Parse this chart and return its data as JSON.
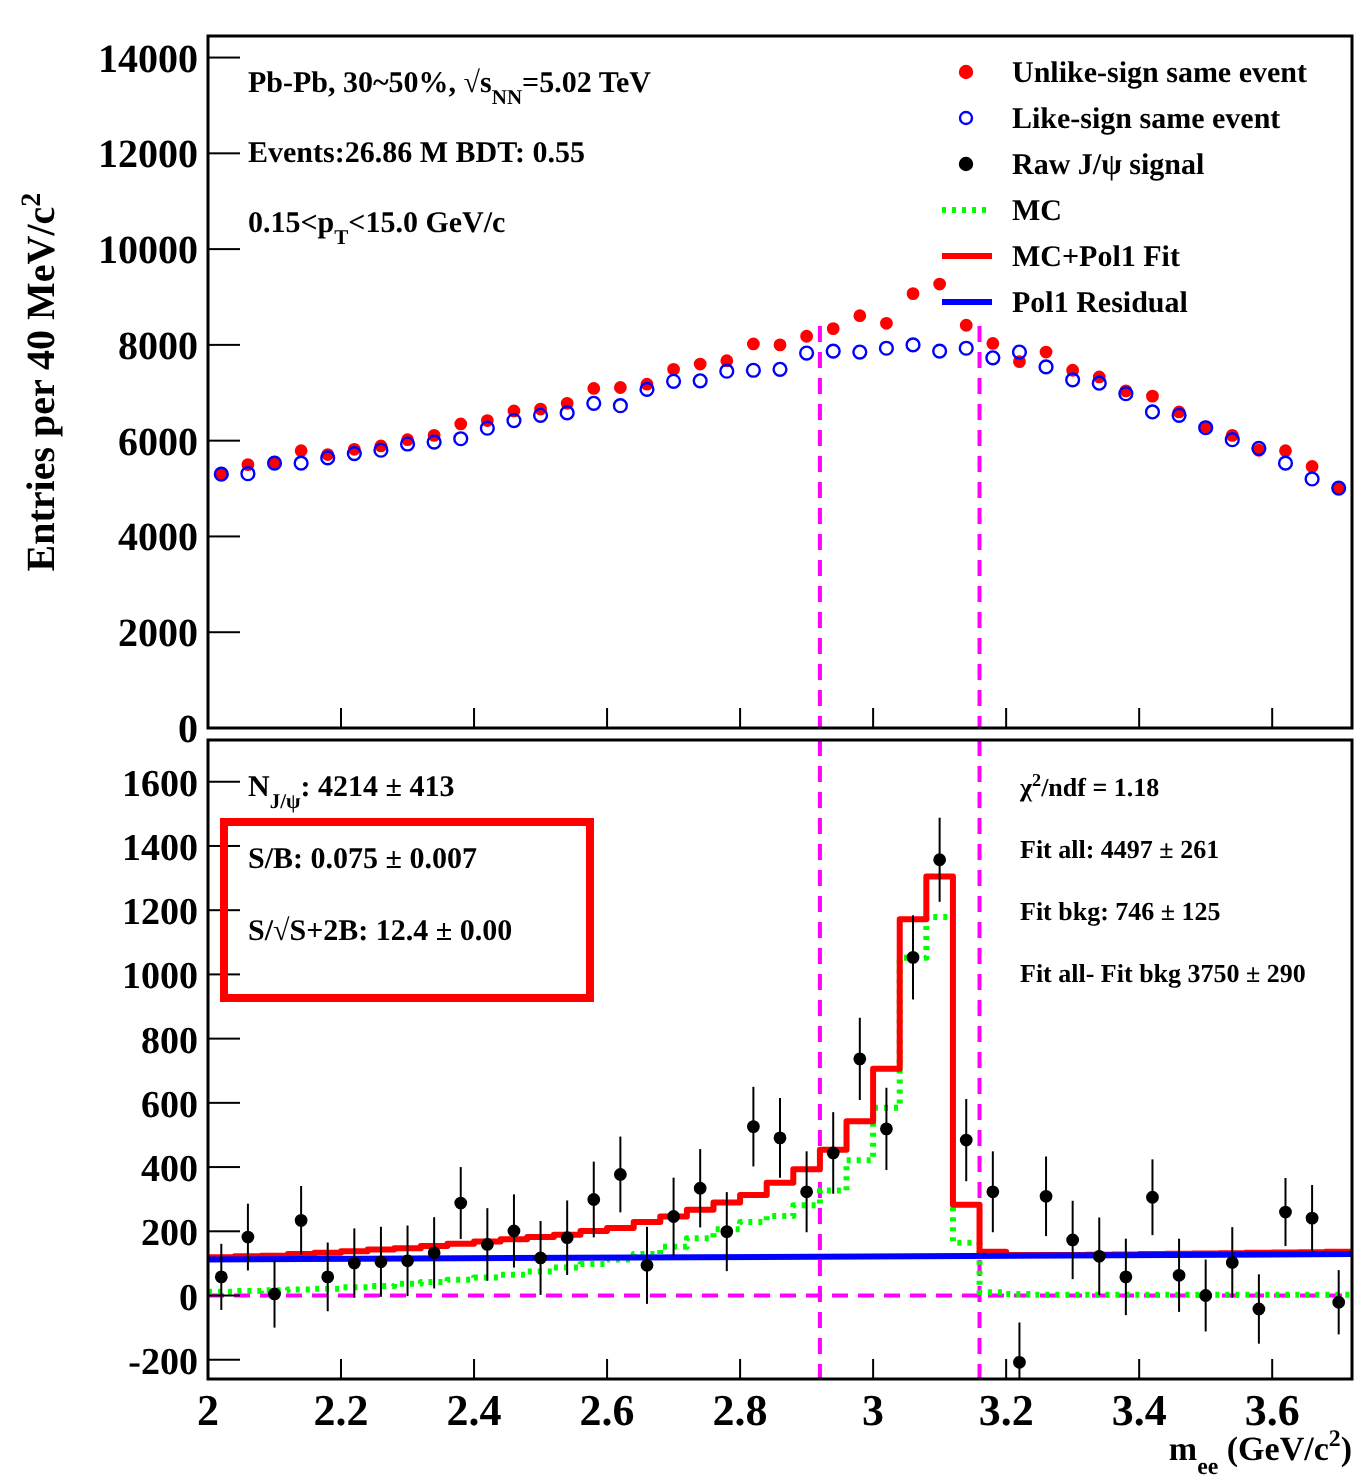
{
  "chart_data": [
    {
      "type": "scatter",
      "ylabel": "Entries per 40 MeV/c$^{2}$",
      "xlim": [
        2,
        3.72
      ],
      "ylim": [
        0,
        14450
      ],
      "yticks": [
        0,
        2000,
        4000,
        6000,
        8000,
        10000,
        12000,
        14000
      ],
      "xticks": [
        {
          "value": 2,
          "label": null
        },
        {
          "value": 2.2,
          "label": null
        },
        {
          "value": 2.4,
          "label": null
        },
        {
          "value": 2.6,
          "label": null
        },
        {
          "value": 2.8,
          "label": null
        },
        {
          "value": 3,
          "label": null
        },
        {
          "value": 3.2,
          "label": null
        },
        {
          "value": 3.4,
          "label": null
        },
        {
          "value": 3.6,
          "label": null
        }
      ],
      "tick_labels": "y",
      "legend": "top right",
      "grid": false,
      "annotations": [
        "Pb-Pb, 30~50%, √s$_{NN}$=5.02 TeV",
        "Events:26.86 M  BDT: 0.55",
        "0.15<p$_{T}$<15.0 GeV/c"
      ],
      "ref_lines": [
        {
          "axis": "x",
          "value": 2.92,
          "color": "#ff00ff",
          "line_style": "dashed"
        },
        {
          "axis": "x",
          "value": 3.16,
          "color": "#ff00ff",
          "line_style": "dashed"
        }
      ],
      "x": [
        2.02,
        2.06,
        2.1,
        2.14,
        2.18,
        2.22,
        2.26,
        2.3,
        2.34,
        2.38,
        2.42,
        2.46,
        2.5,
        2.54,
        2.58,
        2.62,
        2.66,
        2.7,
        2.74,
        2.78,
        2.82,
        2.86,
        2.9,
        2.94,
        2.98,
        3.02,
        3.06,
        3.1,
        3.14,
        3.18,
        3.22,
        3.26,
        3.3,
        3.34,
        3.38,
        3.42,
        3.46,
        3.5,
        3.54,
        3.58,
        3.62,
        3.66,
        3.7
      ],
      "series": [
        {
          "name": "Unlike-sign same event",
          "color": "#ff0000",
          "marker": "circle",
          "values": [
            5300,
            5500,
            5550,
            5790,
            5710,
            5820,
            5890,
            6020,
            6110,
            6350,
            6420,
            6620,
            6660,
            6780,
            7090,
            7110,
            7180,
            7490,
            7600,
            7670,
            8020,
            8000,
            8180,
            8340,
            8610,
            8450,
            9070,
            9270,
            8410,
            8030,
            7650,
            7850,
            7470,
            7330,
            7040,
            6930,
            6600,
            6290,
            6110,
            5800,
            5790,
            5460,
            5010
          ]
        },
        {
          "name": "Like-sign same event",
          "color": "#0000ff",
          "marker": "circle",
          "values": [
            5300,
            5310,
            5530,
            5530,
            5640,
            5730,
            5800,
            5930,
            5970,
            6040,
            6260,
            6420,
            6530,
            6580,
            6780,
            6730,
            7070,
            7240,
            7250,
            7450,
            7470,
            7490,
            7830,
            7870,
            7850,
            7930,
            8000,
            7870,
            7930,
            7730,
            7850,
            7540,
            7270,
            7200,
            6980,
            6600,
            6530,
            6270,
            6020,
            5840,
            5530,
            5200,
            5010
          ]
        }
      ]
    },
    {
      "type": "scatter",
      "legend": "top right",
      "xlabel": "m$_{ee}$ (GeV/c$^{2}$)",
      "xlim": [
        2,
        3.72
      ],
      "ylim": [
        -260,
        1730
      ],
      "xticks": [
        2,
        2.2,
        2.4,
        2.6,
        2.8,
        3,
        3.2,
        3.4,
        3.6
      ],
      "yticks": [
        -200,
        0,
        200,
        400,
        600,
        800,
        1000,
        1200,
        1400,
        1600
      ],
      "grid": false,
      "annotations": [
        "N$_{J/ψ}$: 4214  ± 413",
        "S/B: 0.075  ± 0.007",
        "S/√S+2B:  12.4  ±  0.00",
        "χ$^{2}$/ndf = 1.18",
        "Fit all: 4497  ± 261",
        "Fit bkg: 746  ± 125",
        "Fit all- Fit bkg 3750  ± 290"
      ],
      "ref_lines": [
        {
          "axis": "x",
          "value": 2.92,
          "color": "#ff00ff",
          "line_style": "dashed"
        },
        {
          "axis": "x",
          "value": 3.16,
          "color": "#ff00ff",
          "line_style": "dashed"
        },
        {
          "axis": "y",
          "value": 0,
          "color": "#ff00ff",
          "line_style": "dashed"
        }
      ],
      "x": [
        2.02,
        2.06,
        2.1,
        2.14,
        2.18,
        2.22,
        2.26,
        2.3,
        2.34,
        2.38,
        2.42,
        2.46,
        2.5,
        2.54,
        2.58,
        2.62,
        2.66,
        2.7,
        2.74,
        2.78,
        2.82,
        2.86,
        2.9,
        2.94,
        2.98,
        3.02,
        3.06,
        3.1,
        3.14,
        3.18,
        3.22,
        3.26,
        3.3,
        3.34,
        3.38,
        3.42,
        3.46,
        3.5,
        3.54,
        3.58,
        3.62,
        3.66,
        3.7
      ],
      "series": [
        {
          "name": "Raw J/ψ signal",
          "color": "#000000",
          "marker": "circle",
          "values": [
            58,
            182,
            5,
            234,
            58,
            101,
            105,
            108,
            133,
            288,
            159,
            201,
            117,
            180,
            299,
            377,
            94,
            246,
            334,
            199,
            526,
            491,
            323,
            444,
            737,
            519,
            1053,
            1357,
            484,
            323,
            -208,
            309,
            173,
            122,
            58,
            306,
            63,
            0,
            103,
            -42,
            260,
            241,
            -21
          ],
          "errors": [
            103,
            104,
            105,
            107,
            107,
            108,
            109,
            110,
            111,
            112,
            113,
            114,
            115,
            116,
            118,
            118,
            120,
            121,
            122,
            123,
            124,
            124,
            126,
            127,
            128,
            128,
            131,
            131,
            128,
            126,
            [
              -258,
              -84
            ],
            124,
            122,
            121,
            119,
            118,
            114,
            112,
            110,
            108,
            106,
            103,
            100
          ]
        },
        {
          "name": "MC",
          "type": "step",
          "color": "#00ff00",
          "line_style": "dotted",
          "x": [
            2,
            2.04,
            2.08,
            2.12,
            2.16,
            2.2,
            2.24,
            2.28,
            2.32,
            2.36,
            2.4,
            2.44,
            2.48,
            2.52,
            2.56,
            2.6,
            2.64,
            2.68,
            2.72,
            2.76,
            2.8,
            2.84,
            2.88,
            2.92,
            2.96,
            3,
            3.04,
            3.08,
            3.12,
            3.16,
            3.2,
            3.24,
            3.28,
            3.32,
            3.36,
            3.4,
            3.44,
            3.48,
            3.52,
            3.56,
            3.6,
            3.64,
            3.68,
            3.72
          ],
          "values": [
            12,
            14,
            16,
            19,
            21,
            26,
            30,
            37,
            42,
            49,
            56,
            65,
            75,
            87,
            98,
            112,
            129,
            152,
            178,
            206,
            229,
            248,
            281,
            327,
            421,
            585,
            1052,
            1179,
            164,
            10,
            5,
            2,
            2,
            2,
            2,
            2,
            2,
            2,
            2,
            2,
            2,
            2,
            2,
            2
          ]
        },
        {
          "name": "MC+Pol1 Fit",
          "type": "step",
          "color": "#ff0000",
          "line_style": "solid",
          "x": [
            2,
            2.04,
            2.08,
            2.12,
            2.16,
            2.2,
            2.24,
            2.28,
            2.32,
            2.36,
            2.4,
            2.44,
            2.48,
            2.52,
            2.56,
            2.6,
            2.64,
            2.68,
            2.72,
            2.76,
            2.8,
            2.84,
            2.88,
            2.92,
            2.96,
            3,
            3.04,
            3.08,
            3.12,
            3.16,
            3.2,
            3.24,
            3.28,
            3.32,
            3.36,
            3.4,
            3.44,
            3.48,
            3.52,
            3.56,
            3.6,
            3.64,
            3.68,
            3.72
          ],
          "values": [
            119,
            122,
            124,
            129,
            133,
            138,
            143,
            147,
            154,
            161,
            168,
            175,
            182,
            189,
            201,
            210,
            229,
            246,
            267,
            290,
            313,
            351,
            393,
            454,
            543,
            706,
            1172,
            1305,
            283,
            136,
            126,
            126,
            126,
            127,
            128,
            129,
            130,
            131,
            132,
            133,
            134,
            135,
            136,
            136
          ]
        },
        {
          "name": "Pol1 Residual",
          "type": "line",
          "color": "#0000ff",
          "line_style": "solid",
          "x": [
            2,
            3.72
          ],
          "values": [
            112,
            129
          ]
        }
      ]
    }
  ]
}
